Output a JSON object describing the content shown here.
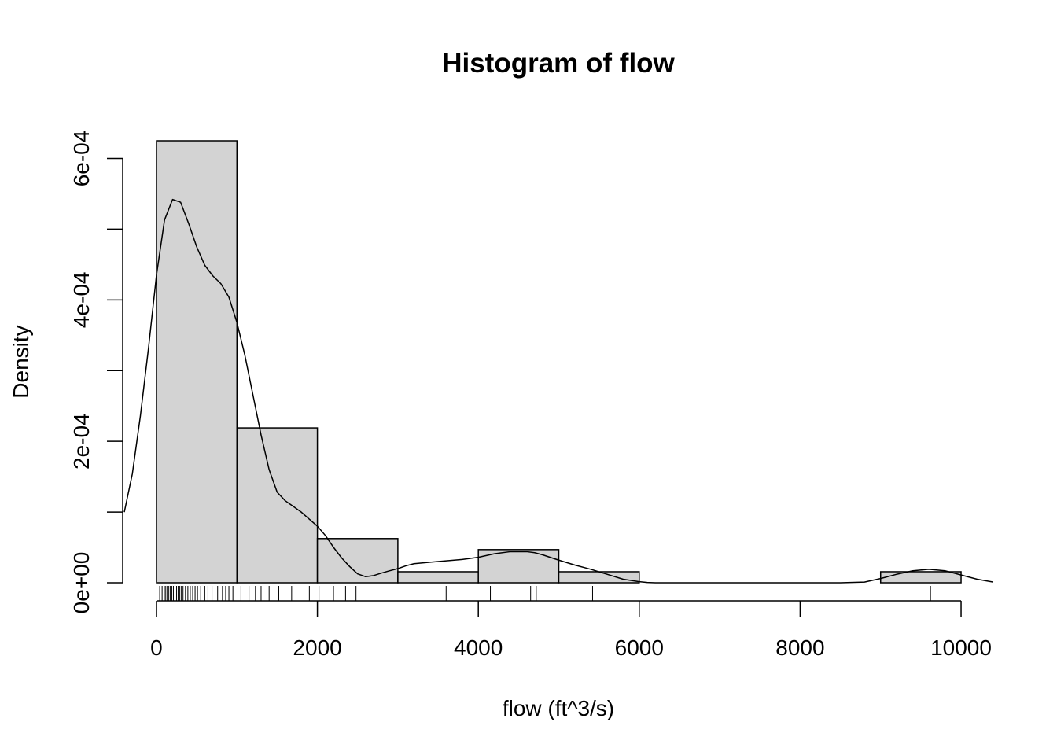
{
  "chart_data": {
    "type": "bar",
    "title": "Histogram of flow",
    "xlabel": "flow (ft^3/s)",
    "ylabel": "Density",
    "xlim": [
      -420,
      10420
    ],
    "ylim": [
      0,
      0.000625
    ],
    "bins": [
      {
        "start": 0,
        "end": 1000,
        "density": 0.000625
      },
      {
        "start": 1000,
        "end": 2000,
        "density": 0.000219
      },
      {
        "start": 2000,
        "end": 3000,
        "density": 6.25e-05
      },
      {
        "start": 3000,
        "end": 4000,
        "density": 1.56e-05
      },
      {
        "start": 4000,
        "end": 5000,
        "density": 4.69e-05
      },
      {
        "start": 5000,
        "end": 6000,
        "density": 1.56e-05
      },
      {
        "start": 6000,
        "end": 7000,
        "density": 0
      },
      {
        "start": 7000,
        "end": 8000,
        "density": 0
      },
      {
        "start": 8000,
        "end": 9000,
        "density": 0
      },
      {
        "start": 9000,
        "end": 10000,
        "density": 1.56e-05
      }
    ],
    "x_ticks": [
      0,
      2000,
      4000,
      6000,
      8000,
      10000
    ],
    "x_tick_labels": [
      "0",
      "2000",
      "4000",
      "6000",
      "8000",
      "10000"
    ],
    "y_ticks": [
      0,
      0.0001,
      0.0002,
      0.0003,
      0.0004,
      0.0005,
      0.0006
    ],
    "y_tick_labels": [
      "0e+00",
      "2e-04",
      "4e-04",
      "6e-04"
    ],
    "y_tick_label_values": [
      0,
      0.0002,
      0.0004,
      0.0006
    ],
    "density_curve": {
      "x": [
        -400,
        -300,
        -200,
        -100,
        0,
        100,
        200,
        300,
        400,
        500,
        600,
        700,
        800,
        900,
        1000,
        1100,
        1200,
        1300,
        1400,
        1500,
        1600,
        1700,
        1800,
        1900,
        2000,
        2100,
        2200,
        2300,
        2400,
        2500,
        2600,
        2700,
        2800,
        2900,
        3000,
        3100,
        3200,
        3400,
        3600,
        3800,
        4000,
        4200,
        4400,
        4600,
        4700,
        4800,
        5000,
        5200,
        5400,
        5600,
        5800,
        6000,
        6100,
        6200,
        6500,
        7000,
        8000,
        8500,
        8800,
        9000,
        9200,
        9400,
        9600,
        9800,
        10000,
        10200,
        10400
      ],
      "y": [
        9.99e-05,
        0.000154,
        0.000236,
        0.000331,
        0.000435,
        0.000513,
        0.000542,
        0.000538,
        0.000508,
        0.000475,
        0.000449,
        0.000434,
        0.000423,
        0.000404,
        0.000368,
        0.000321,
        0.000265,
        0.000209,
        0.00016,
        0.000128,
        0.000116,
        0.000108,
        9.99e-05,
        8.99e-05,
        8e-05,
        6.68e-05,
        5.02e-05,
        3.53e-05,
        2.3e-05,
        1.26e-05,
        8.6e-06,
        1.02e-05,
        1.38e-05,
        1.7e-05,
        2e-05,
        2.4e-05,
        2.7e-05,
        2.9e-05,
        3.1e-05,
        3.3e-05,
        3.6e-05,
        4.1e-05,
        4.4e-05,
        4.4e-05,
        4.25e-05,
        3.95e-05,
        3.2e-05,
        2.5e-05,
        1.9e-05,
        1.2e-05,
        5e-06,
        1.5e-06,
        4e-07,
        0,
        0,
        0,
        0,
        0,
        1e-06,
        6e-06,
        1.2e-05,
        1.7e-05,
        1.9e-05,
        1.7e-05,
        1.1e-05,
        5e-06,
        1e-06
      ]
    },
    "rug": [
      40,
      70,
      95,
      110,
      130,
      150,
      170,
      190,
      210,
      230,
      250,
      270,
      290,
      310,
      330,
      360,
      390,
      420,
      450,
      480,
      510,
      550,
      600,
      640,
      690,
      760,
      820,
      860,
      900,
      950,
      1050,
      1100,
      1150,
      1230,
      1300,
      1400,
      1520,
      1680,
      1900,
      2020,
      2200,
      2350,
      2480,
      3600,
      4150,
      4650,
      4720,
      5420,
      9620
    ],
    "grid": false,
    "legend": "none",
    "bar_color": "#d3d3d3"
  }
}
